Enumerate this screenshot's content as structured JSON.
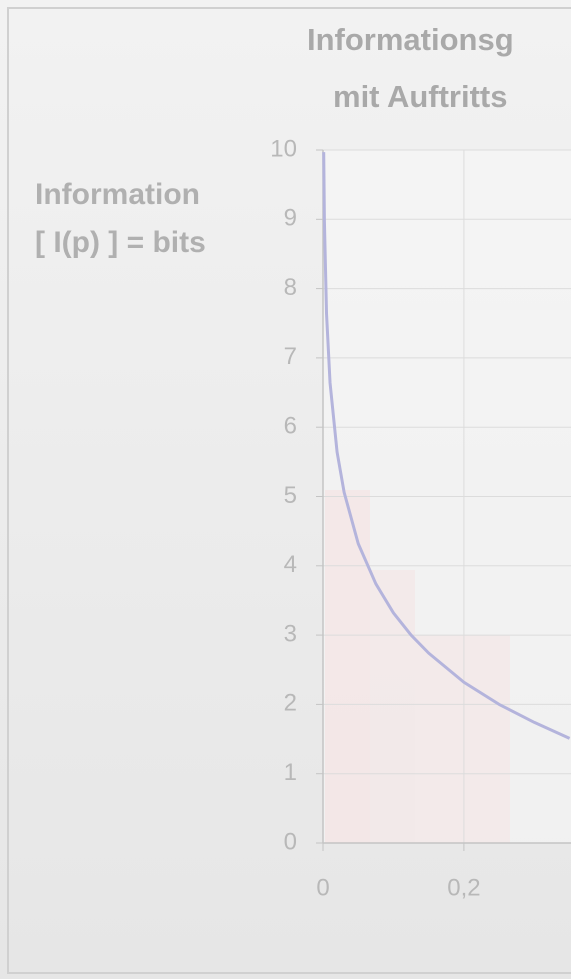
{
  "chart_data": {
    "type": "line",
    "title": [
      "Informationsg",
      "mit Auftritts"
    ],
    "y_label": [
      "Information",
      "[ I(p) ] = bits"
    ],
    "x": [
      0.001,
      0.002,
      0.005,
      0.01,
      0.02,
      0.03,
      0.05,
      0.075,
      0.1,
      0.125,
      0.15,
      0.2,
      0.25,
      0.3,
      0.35
    ],
    "series": [
      {
        "color": "#b4b4dc",
        "values": [
          9.97,
          8.97,
          7.64,
          6.64,
          5.64,
          5.06,
          4.32,
          3.74,
          3.32,
          3,
          2.74,
          2.32,
          2,
          1.74,
          1.51
        ]
      }
    ],
    "xlim": [
      0,
      0.352
    ],
    "ylim": [
      0,
      10
    ],
    "xticks": [
      0,
      {
        "value": 0.2,
        "label": "0,2"
      }
    ],
    "yticks": [
      0,
      1,
      2,
      3,
      4,
      5,
      6,
      7,
      8,
      9,
      10
    ],
    "grid": true
  }
}
